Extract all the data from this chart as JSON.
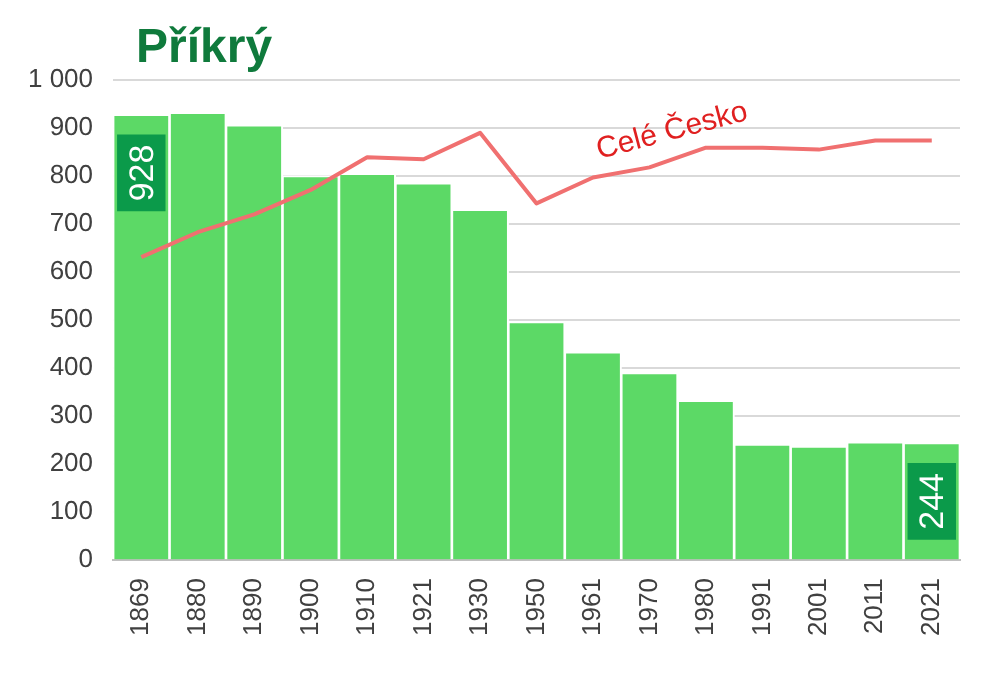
{
  "chart_data": {
    "type": "bar",
    "title": "Příkrý",
    "categories": [
      "1869",
      "1880",
      "1890",
      "1900",
      "1910",
      "1921",
      "1930",
      "1950",
      "1961",
      "1970",
      "1980",
      "1991",
      "2001",
      "2011",
      "2021"
    ],
    "series": [
      {
        "color": "#5cd966",
        "values": [
          928,
          932,
          906,
          800,
          805,
          785,
          730,
          496,
          433,
          390,
          332,
          241,
          237,
          246,
          244
        ],
        "value_labels": [
          "928",
          null,
          null,
          null,
          null,
          null,
          null,
          null,
          null,
          null,
          null,
          null,
          null,
          null,
          "244"
        ]
      },
      {
        "type": "line",
        "name": "Celé Česko",
        "color": "#f07070",
        "values": [
          631,
          683,
          720,
          771,
          839,
          835,
          890,
          743,
          797,
          818,
          859,
          859,
          855,
          874,
          874
        ]
      }
    ],
    "ylim": [
      0,
      1000
    ],
    "yticks": [
      0,
      100,
      200,
      300,
      400,
      500,
      600,
      700,
      800,
      900,
      {
        "value": 1000,
        "label": "1 000"
      }
    ],
    "grid": "y",
    "legend": false
  }
}
